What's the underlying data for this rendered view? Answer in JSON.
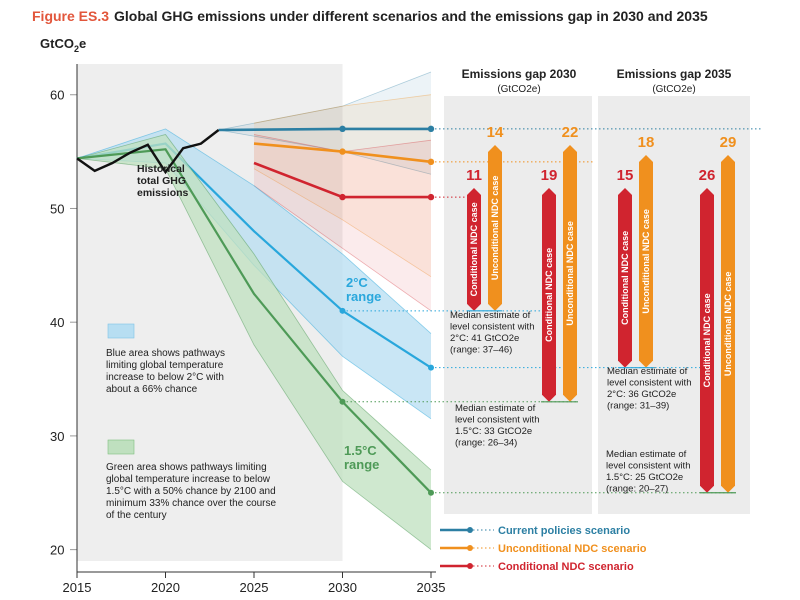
{
  "figure": {
    "label": "Figure ES.3",
    "title": "Global GHG emissions under different scenarios and the emissions gap in 2030 and 2035"
  },
  "chart_data": {
    "type": "line",
    "ylabel": "GtCO2e",
    "x_ticks": [
      2015,
      2020,
      2025,
      2030,
      2035
    ],
    "y_ticks": [
      20,
      30,
      40,
      50,
      60
    ],
    "xlim": [
      2015,
      2035
    ],
    "ylim": [
      19,
      62
    ],
    "historical": {
      "label": "Historical total GHG emissions",
      "color": "#111111",
      "x": [
        2015,
        2016,
        2017,
        2018,
        2019,
        2020,
        2021,
        2022,
        2023
      ],
      "y": [
        54.4,
        53.3,
        54.0,
        54.9,
        55.6,
        53.2,
        55.3,
        55.7,
        56.9
      ]
    },
    "series": [
      {
        "name": "Current policies scenario",
        "color": "#2c7fa3",
        "x": [
          2023,
          2030,
          2035
        ],
        "y": [
          56.9,
          57.0,
          57.0
        ],
        "range_low": [
          56.9,
          55.0,
          53.0
        ],
        "range_high": [
          56.9,
          59.0,
          62.0
        ]
      },
      {
        "name": "Unconditional NDC scenario",
        "color": "#f0901e",
        "x": [
          2025,
          2030,
          2035
        ],
        "y": [
          55.7,
          55.0,
          54.1
        ],
        "range_low": [
          53.5,
          49.0,
          44.0
        ],
        "range_high": [
          57.5,
          59.0,
          60.0
        ]
      },
      {
        "name": "Conditional NDC scenario",
        "color": "#d0242f",
        "x": [
          2025,
          2030,
          2035
        ],
        "y": [
          54.0,
          51.0,
          51.0
        ],
        "range_low": [
          52.0,
          46.5,
          41.0
        ],
        "range_high": [
          56.5,
          55.0,
          56.0
        ]
      }
    ],
    "pathways": [
      {
        "name": "2°C range",
        "color": "#29a7dc",
        "fill": "#b7def2",
        "x": [
          2015,
          2020,
          2025,
          2030,
          2035
        ],
        "median": [
          54.4,
          55.7,
          48.0,
          41.0,
          36.0
        ],
        "low": [
          54.4,
          54.0,
          45.0,
          37.0,
          31.5
        ],
        "high": [
          54.4,
          57.0,
          52.0,
          46.0,
          39.0
        ]
      },
      {
        "name": "1.5°C range",
        "color": "#4e9a57",
        "fill": "#bfe0bf",
        "x": [
          2015,
          2020,
          2025,
          2030,
          2035
        ],
        "median": [
          54.4,
          55.2,
          42.5,
          33.0,
          25.0
        ],
        "low": [
          54.4,
          53.5,
          38.0,
          26.0,
          20.0
        ],
        "high": [
          54.4,
          56.5,
          46.0,
          34.0,
          27.0
        ]
      }
    ],
    "gaps": {
      "gap_2030": {
        "title": "Emissions gap 2030",
        "unit": "(GtCO2e)",
        "bars": [
          {
            "label": "Conditional NDC case",
            "value": 11,
            "color": "#d0242f"
          },
          {
            "label": "Unconditional NDC case",
            "value": 14,
            "color": "#f0901e"
          },
          {
            "label": "Conditional NDC case",
            "value": 19,
            "color": "#d0242f"
          },
          {
            "label": "Unconditional NDC case",
            "value": 22,
            "color": "#f0901e"
          }
        ],
        "note_2c": [
          "Median estimate of",
          "level consistent with",
          "2°C: 41 GtCO2e",
          "(range: 37–46)"
        ],
        "note_15c": [
          "Median estimate of",
          "level consistent with",
          "1.5°C: 33 GtCO2e",
          "(range: 26–34)"
        ]
      },
      "gap_2035": {
        "title": "Emissions gap 2035",
        "unit": "(GtCO2e)",
        "bars": [
          {
            "label": "Conditional NDC case",
            "value": 15,
            "color": "#d0242f"
          },
          {
            "label": "Unconditional NDC case",
            "value": 18,
            "color": "#f0901e"
          },
          {
            "label": "Conditional NDC case",
            "value": 26,
            "color": "#d0242f"
          },
          {
            "label": "Unconditional NDC case",
            "value": 29,
            "color": "#f0901e"
          }
        ],
        "note_2c": [
          "Median estimate of",
          "level consistent with",
          "2°C: 36 GtCO2e",
          "(range: 31–39)"
        ],
        "note_15c": [
          "Median estimate of",
          "level consistent with",
          "1.5°C: 25 GtCO2e",
          "(range: 20–27)"
        ]
      }
    },
    "annotations": {
      "historical": [
        "Historical",
        "total GHG",
        "emissions"
      ],
      "label_2c": [
        "2°C",
        "range"
      ],
      "label_15c": [
        "1.5°C",
        "range"
      ],
      "blue_note": [
        "Blue area shows pathways",
        "limiting global temperature",
        "increase to below 2°C with",
        "about a 66% chance"
      ],
      "green_note": [
        "Green area shows pathways limiting",
        "global temperature increase to below",
        "1.5°C with a 50% chance by 2100 and",
        "minimum 33% chance over the course",
        "of the century"
      ]
    },
    "legend": [
      "Current policies scenario",
      "Unconditional NDC scenario",
      "Conditional NDC scenario"
    ],
    "colors": {
      "gray_panel": "#eeeeee",
      "gap_panel": "#ececec",
      "accent_red": "#e2563b"
    }
  }
}
